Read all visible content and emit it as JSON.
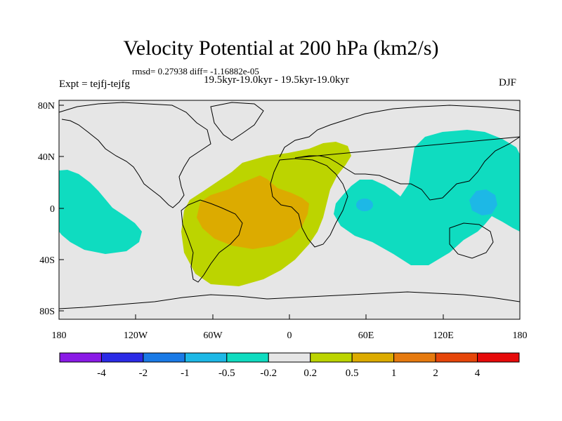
{
  "header": {
    "title": "Velocity Potential at 200 hPa (km2/s)",
    "stats": "rmsd= 0.27938 diff= -1.16882e-05",
    "subtitle": "19.5kyr-19.0kyr - 19.5kyr-19.0kyr",
    "experiment": "Expt = tejfj-tejfg",
    "season": "DJF"
  },
  "map": {
    "background": "#e6e6e6",
    "lon_ticks": [
      "180",
      "120W",
      "60W",
      "0",
      "60E",
      "120E",
      "180"
    ],
    "lat_ticks": [
      "80N",
      "40N",
      "0",
      "40S",
      "80S"
    ],
    "regions": [
      {
        "name": "atlantic-positive-outer",
        "level": "0.2 to 0.5",
        "color": "#bcd400"
      },
      {
        "name": "atlantic-positive-inner",
        "level": "0.5 to 1",
        "color": "#dcab00"
      },
      {
        "name": "pacific-negative-east",
        "level": "-0.5 to -0.2",
        "color": "#0fdcc0"
      },
      {
        "name": "indo-pacific-negative",
        "level": "-0.5 to -0.2",
        "color": "#0fdcc0"
      },
      {
        "name": "indian-negative-core",
        "level": "-1 to -0.5",
        "color": "#1db8e6"
      },
      {
        "name": "west-pacific-negative-core",
        "level": "-1 to -0.5",
        "color": "#1db8e6"
      }
    ]
  },
  "colorbar": {
    "colors": [
      "#8a1ae6",
      "#2b2be6",
      "#1a7ae6",
      "#1db8e6",
      "#0fdcc0",
      "#e6e6e6",
      "#bcd400",
      "#dcab00",
      "#e67a0e",
      "#e6460a",
      "#e60a0a"
    ],
    "labels": [
      "-4",
      "-2",
      "-1",
      "-0.5",
      "-0.2",
      "0.2",
      "0.5",
      "1",
      "2",
      "4"
    ]
  }
}
